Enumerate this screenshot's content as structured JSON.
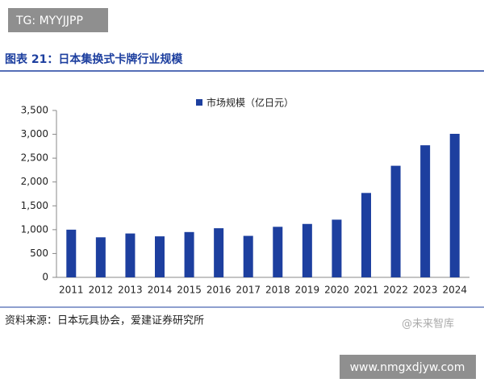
{
  "chart_data": {
    "type": "bar",
    "title": "图表 21：日本集换式卡牌行业规模",
    "source": "资料来源：日本玩具协会，爱建证券研究所",
    "categories": [
      "2011",
      "2012",
      "2013",
      "2014",
      "2015",
      "2016",
      "2017",
      "2018",
      "2019",
      "2020",
      "2021",
      "2022",
      "2023",
      "2024"
    ],
    "series": [
      {
        "name": "市场规模（亿日元）",
        "color": "#1d3f9f",
        "values": [
          1000,
          840,
          920,
          860,
          950,
          1030,
          870,
          1060,
          1120,
          1210,
          1770,
          2340,
          2770,
          3010
        ]
      }
    ],
    "ylim": [
      0,
      3500
    ],
    "yticks": [
      0,
      500,
      {
        "value": 1000,
        "label": "1,000"
      },
      {
        "value": 1500,
        "label": "1,500"
      },
      {
        "value": 2000,
        "label": "2,000"
      },
      {
        "value": 2500,
        "label": "2,500"
      },
      {
        "value": 3000,
        "label": "3,000"
      },
      {
        "value": 3500,
        "label": "3,500"
      }
    ],
    "grid": false,
    "legend": "top"
  },
  "overlay": {
    "tag": "TG: MYYJJPP",
    "watermark": "@未来智库",
    "url": "www.nmgxdjyw.com"
  }
}
